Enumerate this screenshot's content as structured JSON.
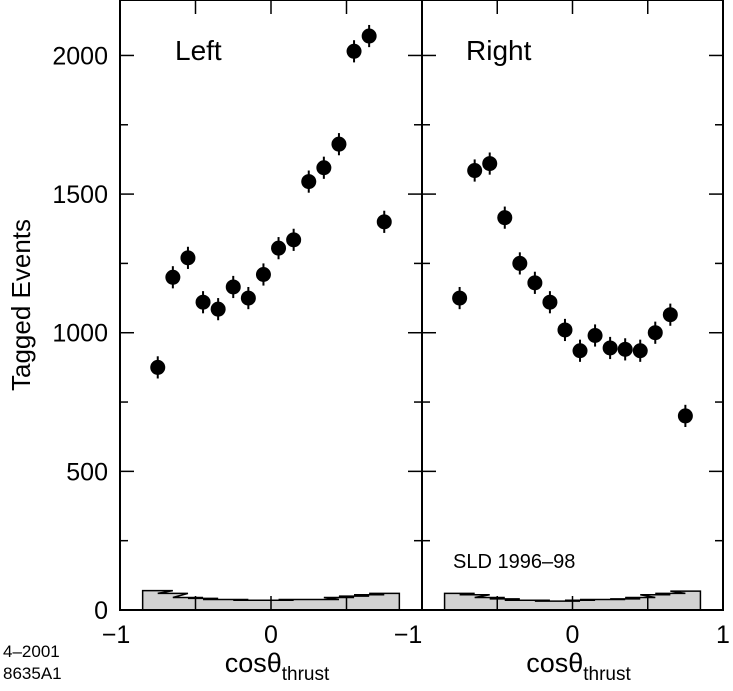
{
  "chart_data": {
    "type": "scatter",
    "ylabel": "Tagged Events",
    "ylim": [
      0,
      2200
    ],
    "yticks": [
      0,
      500,
      1000,
      1500,
      2000
    ],
    "ytick_labels": [
      "0",
      "500",
      "1000",
      "1500",
      "2000"
    ],
    "corner_note": [
      "4–2001",
      "8635A1"
    ],
    "panels": [
      {
        "label": "Left",
        "xlim": [
          -1,
          1
        ],
        "xlabel_main": "cosθ",
        "xlabel_sub": "thrust",
        "xtick_labels": [
          "−1",
          "0"
        ],
        "annotation": "",
        "x": [
          -0.75,
          -0.65,
          -0.55,
          -0.45,
          -0.35,
          -0.25,
          -0.15,
          -0.05,
          0.05,
          0.15,
          0.25,
          0.35,
          0.45,
          0.55,
          0.65,
          0.75
        ],
        "y": [
          875,
          1200,
          1270,
          1110,
          1085,
          1165,
          1125,
          1210,
          1305,
          1335,
          1545,
          1595,
          1680,
          2015,
          2070,
          1400
        ],
        "yerr": 40,
        "background": [
          70,
          60,
          45,
          42,
          38,
          38,
          35,
          35,
          35,
          38,
          38,
          38,
          45,
          50,
          55,
          60
        ]
      },
      {
        "label": "Right",
        "xlim": [
          -1,
          1
        ],
        "xlabel_main": "cosθ",
        "xlabel_sub": "thrust",
        "xtick_labels": [
          "−1",
          "0",
          "1"
        ],
        "annotation": "SLD 1996–98",
        "x": [
          -0.75,
          -0.65,
          -0.55,
          -0.45,
          -0.35,
          -0.25,
          -0.15,
          -0.05,
          0.05,
          0.15,
          0.25,
          0.35,
          0.45,
          0.55,
          0.65,
          0.75
        ],
        "y": [
          1125,
          1585,
          1610,
          1415,
          1250,
          1180,
          1110,
          1010,
          935,
          990,
          945,
          940,
          935,
          1000,
          1065,
          700
        ],
        "yerr": 40,
        "background": [
          60,
          55,
          45,
          40,
          35,
          35,
          32,
          32,
          35,
          38,
          38,
          40,
          45,
          55,
          60,
          68
        ]
      }
    ]
  }
}
